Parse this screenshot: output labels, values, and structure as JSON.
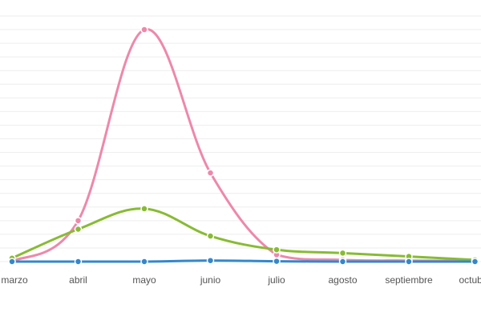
{
  "chart_data": {
    "type": "line",
    "categories": [
      "marzo",
      "abril",
      "mayo",
      "junio",
      "julio",
      "agosto",
      "septiembre",
      "octubre"
    ],
    "series": [
      {
        "color": "#ee88aa",
        "values": [
          0,
          12,
          68,
          26,
          2,
          0.5,
          0.3,
          0.2
        ]
      },
      {
        "color": "#88bb33",
        "values": [
          1,
          9.5,
          15.5,
          7.5,
          3.5,
          2.5,
          1.5,
          0.5
        ]
      },
      {
        "color": "#3388cc",
        "values": [
          0,
          0,
          0,
          0.3,
          0.1,
          0,
          0,
          0
        ]
      }
    ],
    "ylim": [
      0,
      72
    ],
    "grid": true,
    "legend": "none"
  }
}
